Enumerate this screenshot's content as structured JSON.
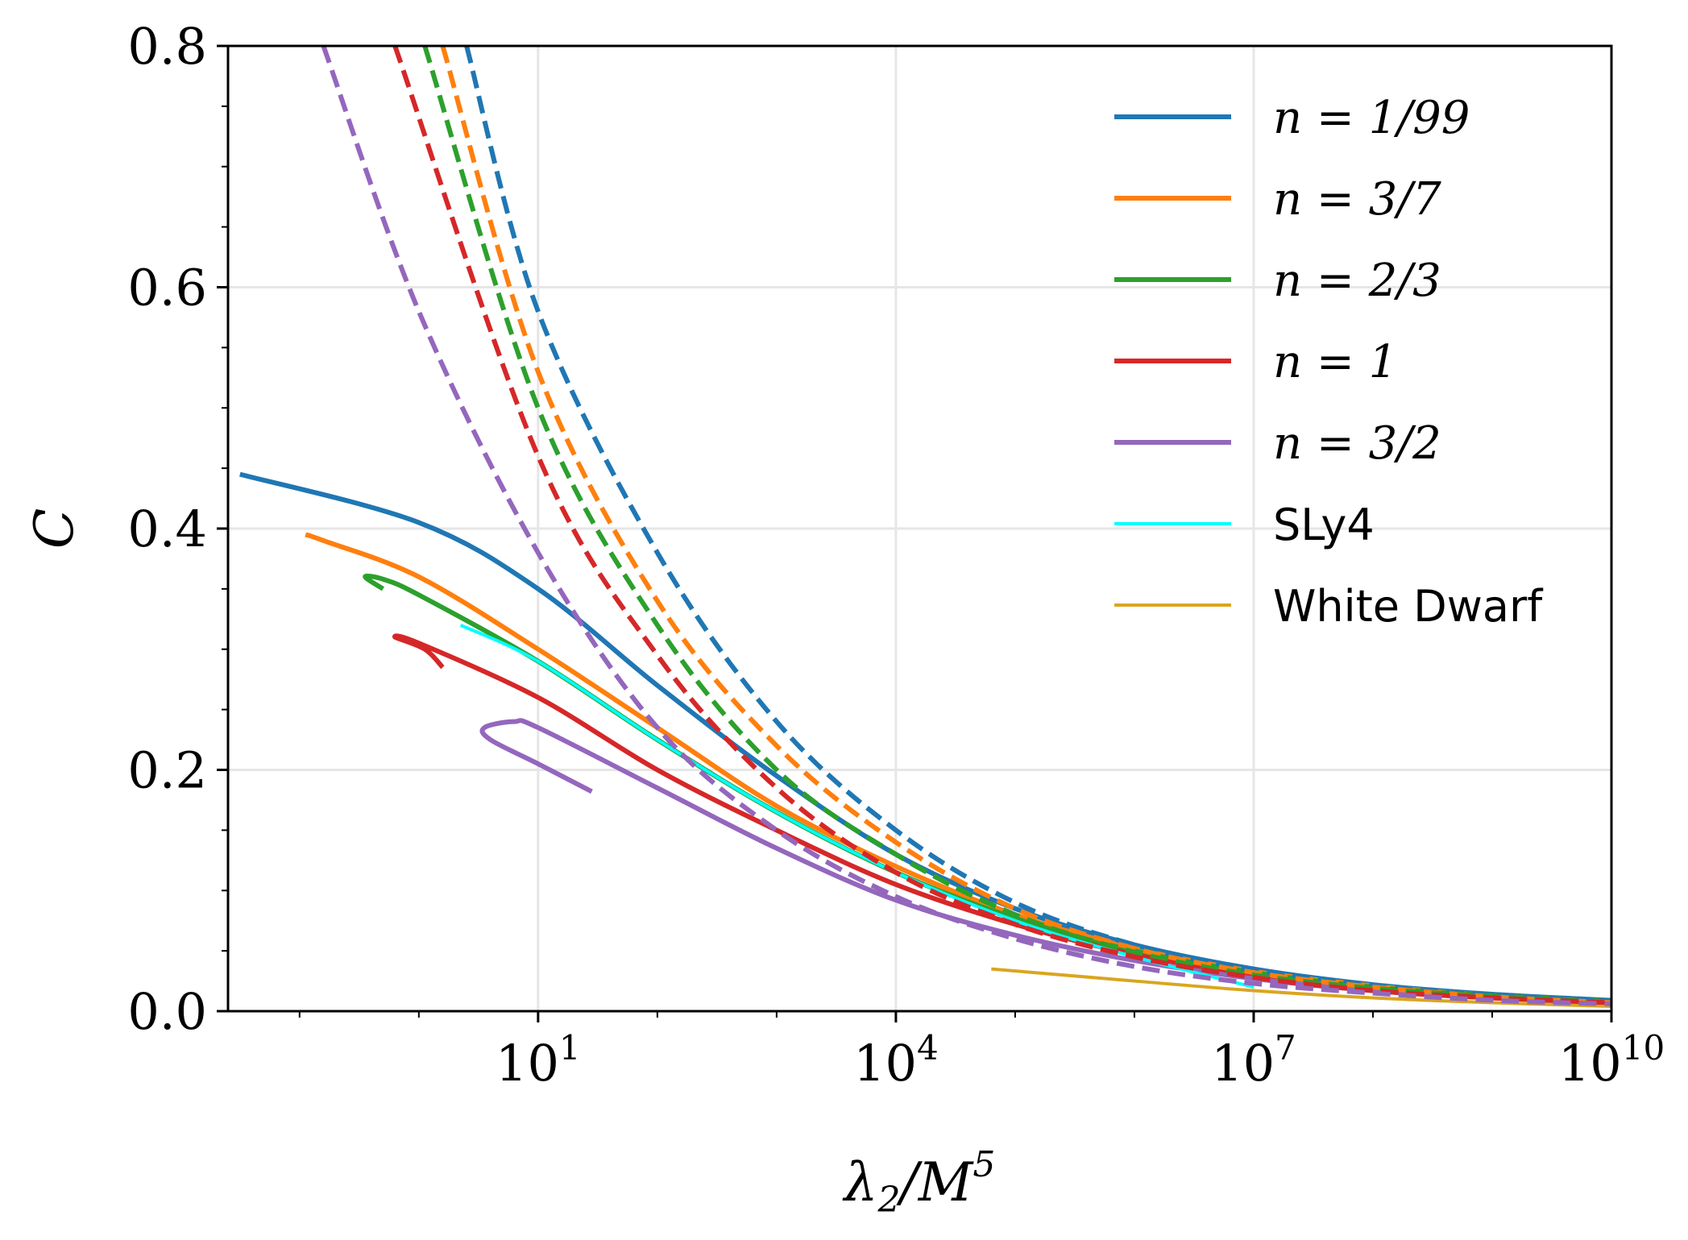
{
  "chart_data": {
    "type": "line",
    "title": "",
    "xlabel": "λ2/M^5",
    "ylabel": "C",
    "xscale": "log",
    "xlim_log10": [
      -1.6,
      10
    ],
    "ylim": [
      0,
      0.8
    ],
    "grid": true,
    "legend_position": "top-right",
    "x_ticks": [
      {
        "base": "10",
        "exp": "1"
      },
      {
        "base": "10",
        "exp": "4"
      },
      {
        "base": "10",
        "exp": "7"
      },
      {
        "base": "10",
        "exp": "10"
      }
    ],
    "x_tick_log10": [
      1,
      4,
      7,
      10
    ],
    "y_ticks": [
      "0.0",
      "0.2",
      "0.4",
      "0.6",
      "0.8"
    ],
    "y_tick_values": [
      0,
      0.2,
      0.4,
      0.6,
      0.8
    ],
    "legend": [
      {
        "label": "n = 1/99",
        "color": "#1f77b4"
      },
      {
        "label": "n = 3/7",
        "color": "#ff7f0e"
      },
      {
        "label": "n = 2/3",
        "color": "#2ca02c"
      },
      {
        "label": "n = 1",
        "color": "#d62728"
      },
      {
        "label": "n = 3/2",
        "color": "#9467bd"
      },
      {
        "label": "SLy4",
        "color": "#00ffff"
      },
      {
        "label": "White Dwarf",
        "color": "#daa520"
      }
    ],
    "series": [
      {
        "name": "n = 1/99",
        "style": "solid",
        "color": "#1f77b4",
        "log10_x": [
          -1.5,
          0,
          1,
          2,
          3,
          4,
          5,
          6,
          7,
          8,
          9,
          10
        ],
        "y": [
          0.445,
          0.405,
          0.35,
          0.27,
          0.195,
          0.13,
          0.085,
          0.055,
          0.035,
          0.022,
          0.014,
          0.009
        ]
      },
      {
        "name": "n = 3/7",
        "style": "solid",
        "color": "#ff7f0e",
        "log10_x": [
          -0.95,
          -0.8,
          0,
          1,
          2,
          3,
          4,
          5,
          6,
          7,
          8,
          9,
          10
        ],
        "y": [
          0.395,
          0.39,
          0.36,
          0.3,
          0.235,
          0.17,
          0.12,
          0.08,
          0.052,
          0.033,
          0.021,
          0.013,
          0.008
        ]
      },
      {
        "name": "n = 2/3",
        "style": "solid",
        "color": "#2ca02c",
        "log10_x": [
          -0.3,
          -0.45,
          -0.3,
          0,
          1,
          2,
          3,
          4,
          5,
          6,
          7,
          8,
          9,
          10
        ],
        "y": [
          0.35,
          0.36,
          0.358,
          0.345,
          0.29,
          0.225,
          0.165,
          0.115,
          0.077,
          0.05,
          0.032,
          0.02,
          0.013,
          0.008
        ]
      },
      {
        "name": "n = 1",
        "style": "solid",
        "color": "#d62728",
        "log10_x": [
          0.2,
          0.05,
          -0.2,
          0,
          1,
          2,
          3,
          4,
          5,
          6,
          7,
          8,
          9,
          10
        ],
        "y": [
          0.285,
          0.3,
          0.31,
          0.305,
          0.26,
          0.2,
          0.15,
          0.105,
          0.072,
          0.047,
          0.03,
          0.019,
          0.012,
          0.007
        ]
      },
      {
        "name": "n = 3/2",
        "style": "solid",
        "color": "#9467bd",
        "log10_x": [
          1.45,
          1.0,
          0.6,
          0.55,
          0.8,
          1,
          2,
          3,
          4,
          5,
          6,
          7,
          8,
          9,
          10
        ],
        "y": [
          0.182,
          0.205,
          0.225,
          0.235,
          0.24,
          0.235,
          0.185,
          0.135,
          0.092,
          0.063,
          0.042,
          0.027,
          0.017,
          0.011,
          0.007
        ]
      },
      {
        "name": "SLy4",
        "style": "solid",
        "color": "#00ffff",
        "log10_x": [
          0.35,
          1,
          2,
          3,
          4,
          5,
          6,
          7
        ],
        "y": [
          0.32,
          0.29,
          0.225,
          0.165,
          0.115,
          0.075,
          0.045,
          0.02
        ]
      },
      {
        "name": "White Dwarf",
        "style": "solid",
        "color": "#daa520",
        "log10_x": [
          4.8,
          6,
          7,
          8,
          9,
          10
        ],
        "y": [
          0.035,
          0.025,
          0.017,
          0.011,
          0.007,
          0.004
        ]
      },
      {
        "name": "n = 1/99 dashed",
        "style": "dashed",
        "color": "#1f77b4",
        "log10_x": [
          0.4,
          1,
          2,
          3,
          4,
          5,
          6,
          7,
          8,
          9,
          10
        ],
        "y": [
          0.8,
          0.58,
          0.38,
          0.24,
          0.15,
          0.09,
          0.055,
          0.034,
          0.021,
          0.013,
          0.008
        ]
      },
      {
        "name": "n = 3/7 dashed",
        "style": "dashed",
        "color": "#ff7f0e",
        "log10_x": [
          0.2,
          1,
          2,
          3,
          4,
          5,
          6,
          7,
          8,
          9,
          10
        ],
        "y": [
          0.8,
          0.53,
          0.34,
          0.22,
          0.14,
          0.085,
          0.052,
          0.032,
          0.02,
          0.012,
          0.007
        ]
      },
      {
        "name": "n = 2/3 dashed",
        "style": "dashed",
        "color": "#2ca02c",
        "log10_x": [
          0.05,
          1,
          2,
          3,
          4,
          5,
          6,
          7,
          8,
          9,
          10
        ],
        "y": [
          0.8,
          0.5,
          0.32,
          0.2,
          0.13,
          0.08,
          0.049,
          0.03,
          0.019,
          0.012,
          0.007
        ]
      },
      {
        "name": "n = 1 dashed",
        "style": "dashed",
        "color": "#d62728",
        "log10_x": [
          -0.2,
          1,
          2,
          3,
          4,
          5,
          6,
          7,
          8,
          9,
          10
        ],
        "y": [
          0.8,
          0.46,
          0.295,
          0.185,
          0.115,
          0.072,
          0.045,
          0.028,
          0.017,
          0.011,
          0.007
        ]
      },
      {
        "name": "n = 3/2 dashed",
        "style": "dashed",
        "color": "#9467bd",
        "log10_x": [
          -0.8,
          0,
          1,
          2,
          3,
          4,
          5,
          6,
          7,
          8,
          9,
          10
        ],
        "y": [
          0.8,
          0.58,
          0.38,
          0.235,
          0.15,
          0.095,
          0.06,
          0.037,
          0.023,
          0.015,
          0.009,
          0.006
        ]
      }
    ]
  }
}
